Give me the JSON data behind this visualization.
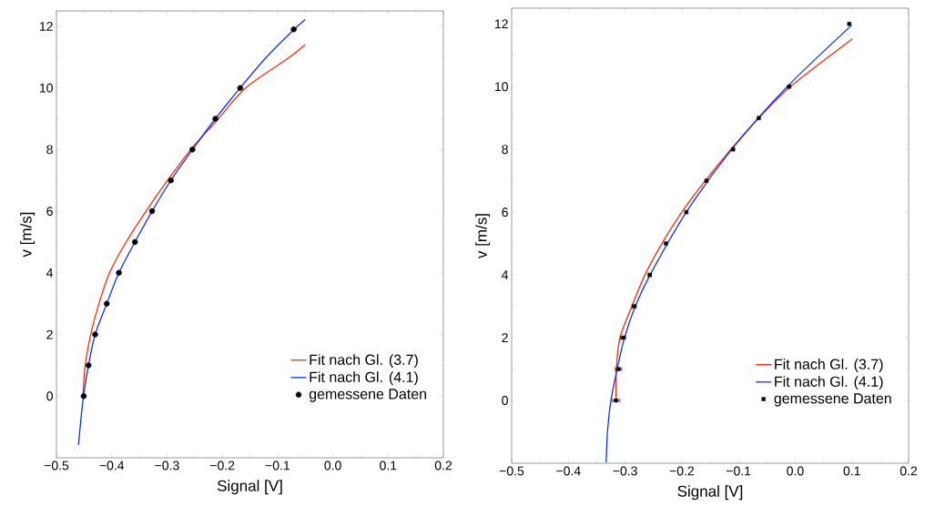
{
  "chart_data": [
    {
      "type": "line",
      "xlabel": "Signal [V]",
      "ylabel": "v [m/s]",
      "xlim": [
        -0.5,
        0.2
      ],
      "ylim": [
        -2,
        12.5
      ],
      "xticks": [
        {
          "value": -0.5,
          "label": "−0.5"
        },
        {
          "value": -0.4,
          "label": "−0.4"
        },
        {
          "value": -0.3,
          "label": "−0.3"
        },
        {
          "value": -0.2,
          "label": "−0.2"
        },
        {
          "value": -0.1,
          "label": "−0.1"
        },
        {
          "value": 0,
          "label": "0.0"
        },
        {
          "value": 0.1,
          "label": "0.1"
        },
        {
          "value": 0.2,
          "label": "0.2"
        }
      ],
      "yticks": [
        0,
        2,
        4,
        6,
        8,
        10,
        12
      ],
      "legend": "bottom right",
      "grid": false,
      "series": [
        {
          "name": "Fit nach Gl. (3.7)",
          "color": "#ff2a00",
          "marker": "none",
          "x": [
            -0.452,
            -0.448,
            -0.438,
            -0.423,
            -0.404,
            -0.374,
            -0.338,
            -0.299,
            -0.257,
            -0.207,
            -0.158,
            -0.078,
            -0.05
          ],
          "values": [
            0,
            1,
            2,
            3,
            4,
            5,
            6,
            7,
            8,
            9,
            10,
            11,
            11.41
          ]
        },
        {
          "name": "Fit nach Gl. (4.1)",
          "color": "#0a32ff",
          "marker": "none",
          "x": [
            -0.46,
            -0.456,
            -0.451,
            -0.442,
            -0.43,
            -0.409,
            -0.387,
            -0.358,
            -0.327,
            -0.293,
            -0.254,
            -0.2125,
            -0.1676,
            -0.12,
            -0.07,
            -0.05
          ],
          "values": [
            -1.58,
            -0.8,
            0,
            1,
            2,
            3,
            4,
            5,
            6,
            7,
            8,
            9,
            10,
            11,
            11.9,
            12.22
          ]
        },
        {
          "name": "gemessene Daten",
          "type": "scatter",
          "color": "#000000",
          "marker": "circle",
          "x": [
            -0.4507,
            -0.442,
            -0.43,
            -0.409,
            -0.387,
            -0.358,
            -0.327,
            -0.293,
            -0.254,
            -0.2125,
            -0.1676,
            -0.0707
          ],
          "values": [
            0,
            1,
            2,
            3,
            4,
            5,
            6,
            7,
            8,
            9,
            10,
            11.9
          ]
        }
      ]
    },
    {
      "type": "line",
      "xlabel": "Signal [V]",
      "ylabel": "v [m/s]",
      "xlim": [
        -0.5,
        0.2
      ],
      "ylim": [
        -2,
        12.5
      ],
      "xticks": [
        {
          "value": -0.5,
          "label": "−0.5"
        },
        {
          "value": -0.4,
          "label": "−0.4"
        },
        {
          "value": -0.3,
          "label": "−0.3"
        },
        {
          "value": -0.2,
          "label": "−0.2"
        },
        {
          "value": -0.1,
          "label": "−0.1"
        },
        {
          "value": 0,
          "label": "0.0"
        },
        {
          "value": 0.1,
          "label": "0.1"
        },
        {
          "value": 0.2,
          "label": "0.2"
        }
      ],
      "yticks": [
        0,
        2,
        4,
        6,
        8,
        10,
        12
      ],
      "legend": "bottom right",
      "grid": false,
      "series": [
        {
          "name": "Fit nach Gl. (3.7)",
          "color": "#ff2a00",
          "marker": "none",
          "x": [
            -0.316,
            -0.3154,
            -0.309,
            -0.288,
            -0.265,
            -0.235,
            -0.2,
            -0.1587,
            -0.1136,
            -0.0642,
            -0.0085,
            0.1008
          ],
          "values": [
            0,
            1,
            2,
            3,
            4,
            5,
            6,
            7,
            8,
            9,
            10,
            11.52
          ]
        },
        {
          "name": "Fit nach Gl. (4.1)",
          "color": "#0a32ff",
          "marker": "none",
          "x": [
            -0.3334,
            -0.331,
            -0.325,
            -0.314,
            -0.301,
            -0.282,
            -0.256,
            -0.192,
            -0.112,
            -0.014,
            0.0997
          ],
          "values": [
            -1.98,
            -1,
            0,
            1,
            2,
            3,
            4,
            6,
            8,
            10,
            11.96
          ]
        },
        {
          "name": "gemessene Daten",
          "type": "scatter",
          "color": "#000000",
          "marker": "square",
          "x": [
            -0.316,
            -0.3116,
            -0.3034,
            -0.284,
            -0.2564,
            -0.228,
            -0.192,
            -0.1565,
            -0.1095,
            -0.0642,
            -0.0107,
            0.0953
          ],
          "values": [
            0,
            1,
            2,
            3,
            4,
            5,
            6,
            7,
            8,
            9,
            10,
            12
          ],
          "xerrors": [
            0.007,
            0.006,
            0.005,
            0.004,
            0.003,
            null,
            null,
            null,
            null,
            null,
            null,
            null
          ]
        }
      ]
    }
  ]
}
